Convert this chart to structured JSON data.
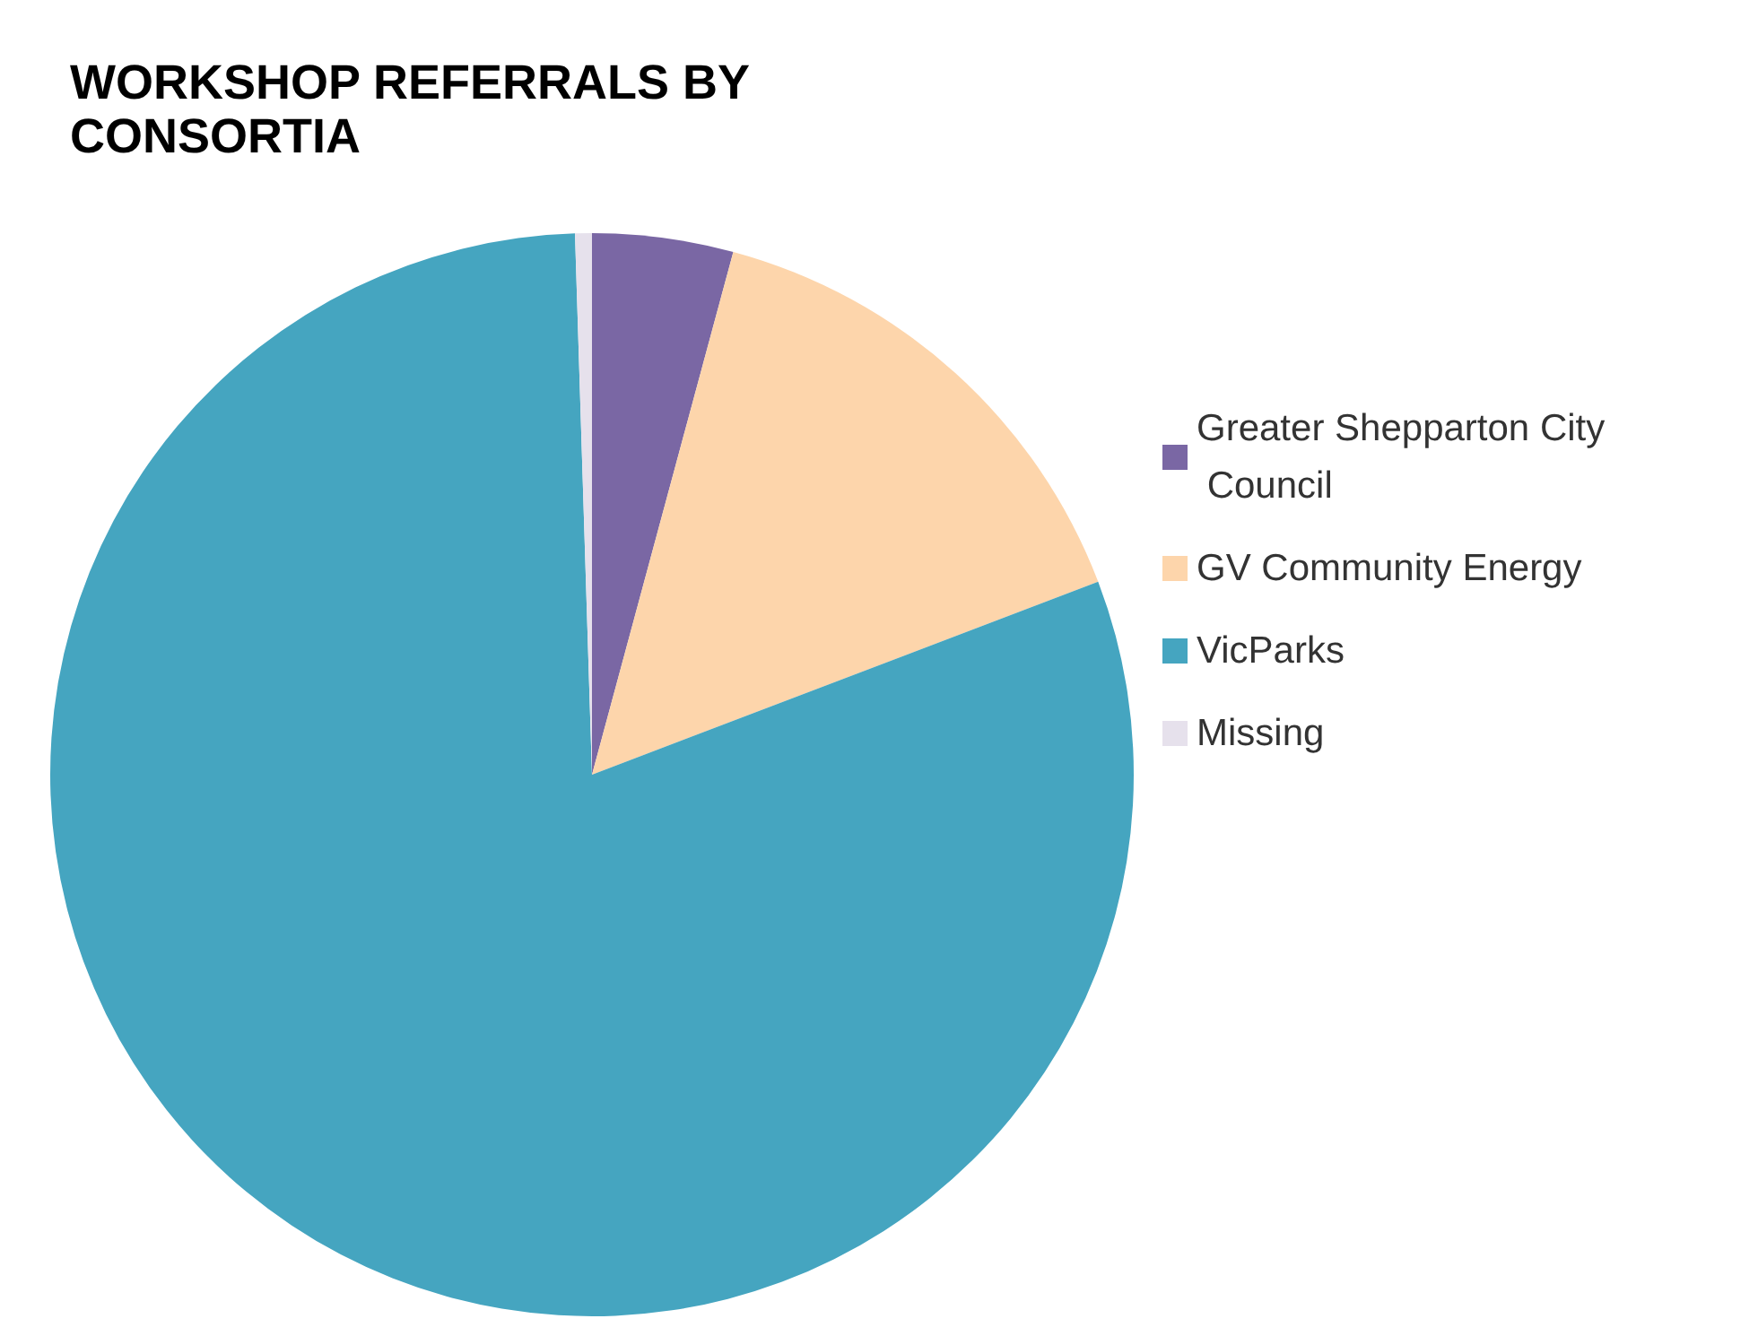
{
  "chart_data": {
    "type": "pie",
    "title": "WORKSHOP REFERRALS BY CONSORTIA",
    "categories": [
      "Greater Shepparton City Council",
      "GV Community Energy",
      "VicParks",
      "Missing"
    ],
    "values": [
      4.2,
      15.0,
      80.3,
      0.5
    ],
    "colors": [
      "#7a67a4",
      "#fdd5ab",
      "#45a5c0",
      "#e6e1ec"
    ],
    "legend": "right"
  }
}
